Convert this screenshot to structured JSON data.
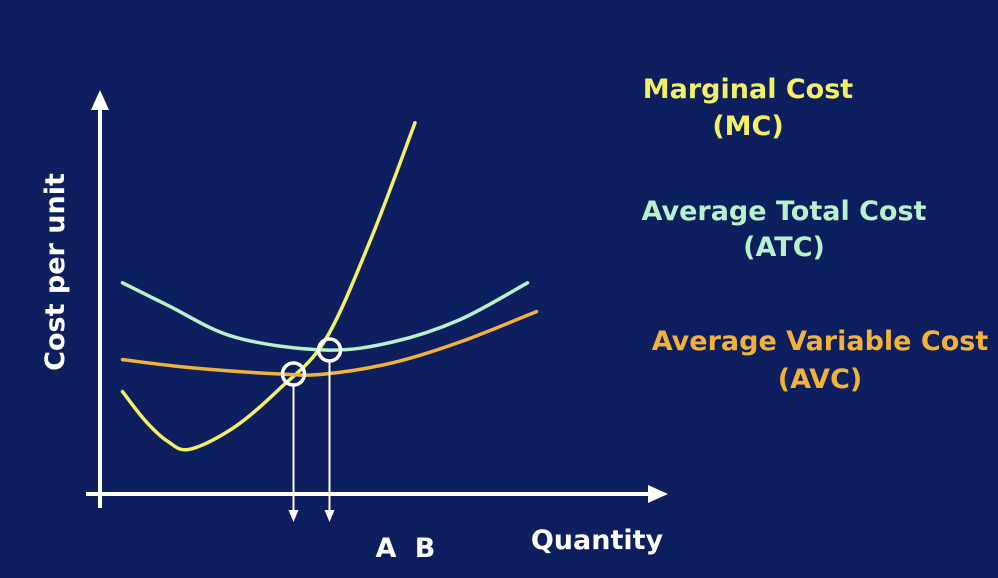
{
  "chart_data": {
    "type": "line",
    "title": "",
    "xlabel": "Quantity",
    "ylabel": "Cost per unit",
    "x_ticks": [
      "A",
      "B"
    ],
    "grid": false,
    "series": [
      {
        "name": "Marginal Cost",
        "abbr": "(MC)",
        "color": "#f4f065",
        "points": [
          [
            0.5,
            3.2
          ],
          [
            1,
            2.3
          ],
          [
            1.5,
            1.65
          ],
          [
            2,
            1.4
          ],
          [
            3,
            2.1
          ],
          [
            4,
            3.3
          ],
          [
            5,
            4.8
          ],
          [
            6,
            7.9
          ],
          [
            7,
            11.6
          ]
        ]
      },
      {
        "name": "Average Total Cost",
        "abbr": "(ATC)",
        "color": "#b8f2cc",
        "points": [
          [
            0.5,
            6.6
          ],
          [
            1.5,
            5.9
          ],
          [
            3,
            4.9
          ],
          [
            5,
            4.5
          ],
          [
            6.5,
            4.75
          ],
          [
            8,
            5.45
          ],
          [
            9.5,
            6.6
          ]
        ]
      },
      {
        "name": "Average Variable Cost",
        "abbr": "(AVC)",
        "color": "#f2b23a",
        "points": [
          [
            0.5,
            4.2
          ],
          [
            2,
            3.95
          ],
          [
            4,
            3.75
          ],
          [
            5,
            3.75
          ],
          [
            6.5,
            4.1
          ],
          [
            8,
            4.75
          ],
          [
            9.7,
            5.7
          ]
        ]
      }
    ],
    "markers": [
      {
        "label": "A",
        "x": 4.3,
        "y": 3.75
      },
      {
        "label": "B",
        "x": 5.1,
        "y": 4.5
      }
    ],
    "xlim": [
      0,
      11
    ],
    "ylim": [
      0,
      12
    ]
  }
}
